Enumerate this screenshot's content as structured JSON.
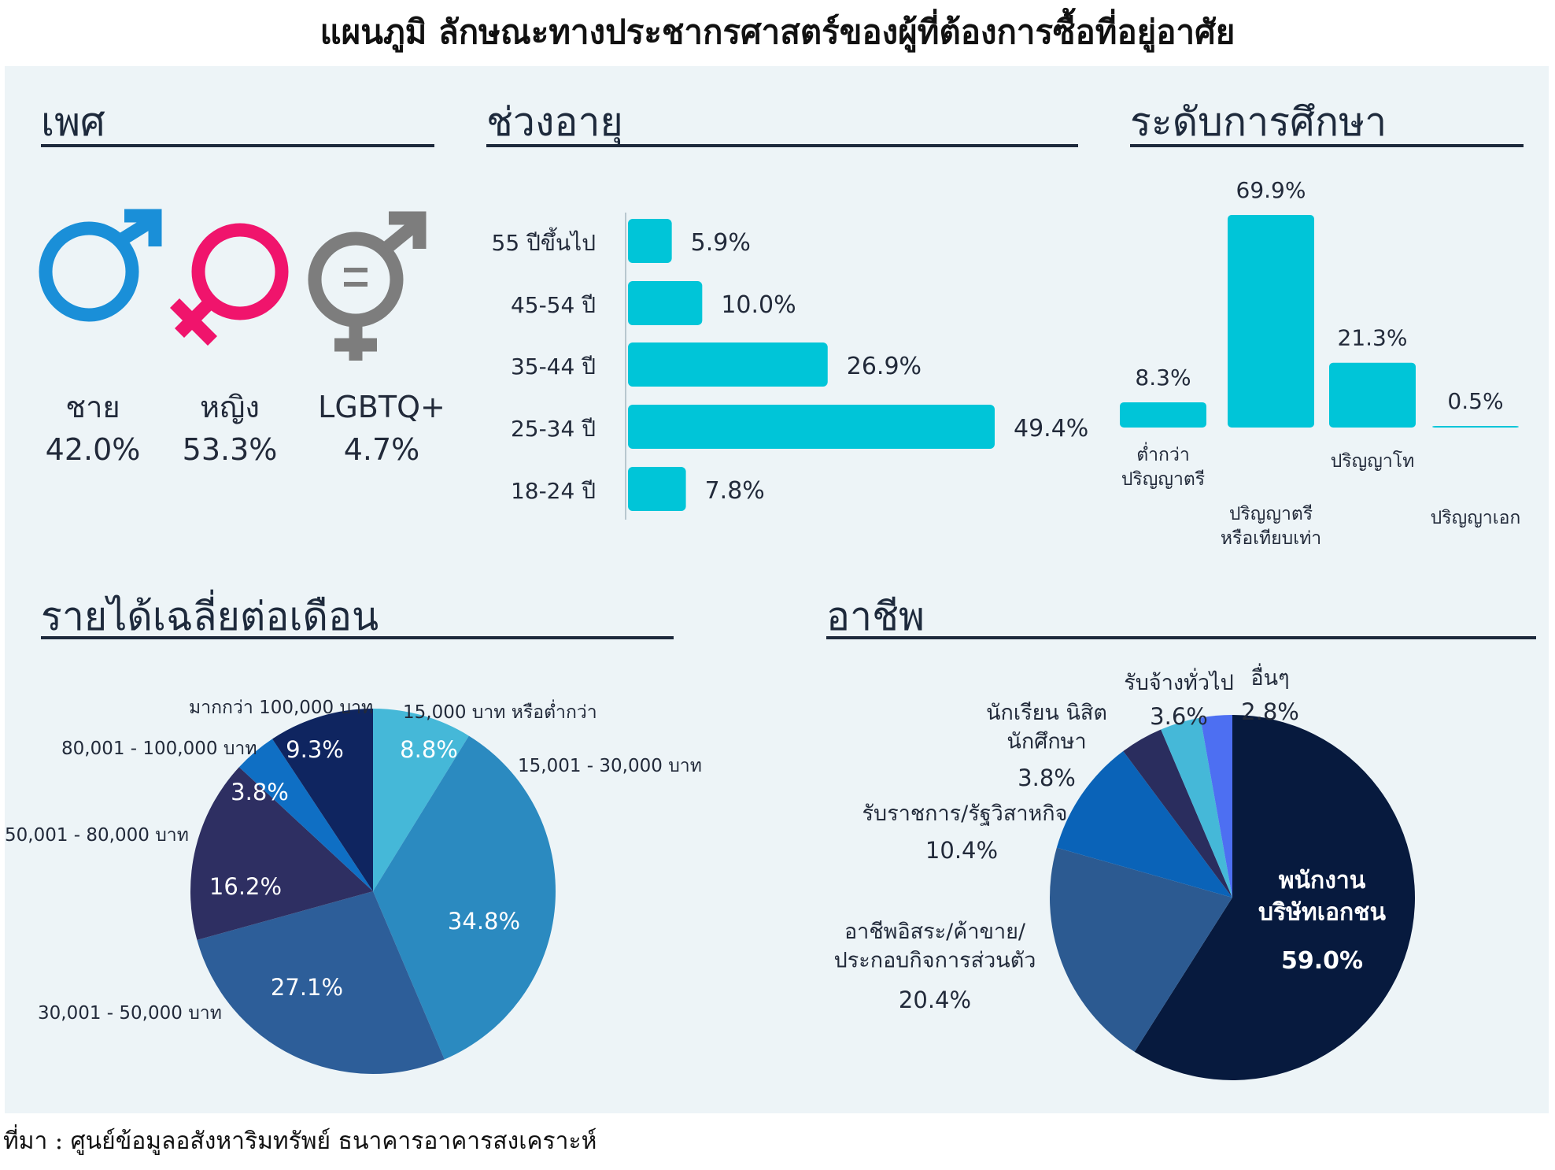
{
  "title": "แผนภูมิ ลักษณะทางประชากรศาสตร์ของผู้ที่ต้องการซื้อที่อยู่อาศัย",
  "source": "ที่มา : ศูนย์ข้อมูลอสังหาริมทรัพย์ ธนาคารอาคารสงเคราะห์",
  "chart_data": [
    {
      "type": "table",
      "title": "เพศ",
      "categories": [
        "ชาย",
        "หญิง",
        "LGBTQ+"
      ],
      "values": [
        42.0,
        53.3,
        4.7
      ],
      "value_labels": [
        "42.0%",
        "53.3%",
        "4.7%"
      ],
      "colors": [
        "#1a8fd8",
        "#f0146c",
        "#7d7d7d"
      ],
      "icons": [
        "male-symbol-icon",
        "female-symbol-icon",
        "lgbtq-symbol-icon"
      ]
    },
    {
      "type": "bar",
      "orientation": "horizontal",
      "title": "ช่วงอายุ",
      "categories": [
        "55 ปีขึ้นไป",
        "45-54 ปี",
        "35-44 ปี",
        "25-34 ปี",
        "18-24 ปี"
      ],
      "values": [
        5.9,
        10.0,
        26.9,
        49.4,
        7.8
      ],
      "value_labels": [
        "5.9%",
        "10.0%",
        "26.9%",
        "49.4%",
        "7.8%"
      ],
      "color": "#00c5d8"
    },
    {
      "type": "bar",
      "title": "ระดับการศึกษา",
      "categories": [
        [
          "ต่ำกว่า",
          "ปริญญาตรี"
        ],
        [
          "ปริญญาตรี",
          "หรือเทียบเท่า"
        ],
        [
          "ปริญญาโท"
        ],
        [
          "ปริญญาเอก"
        ]
      ],
      "values": [
        8.3,
        69.9,
        21.3,
        0.5
      ],
      "value_labels": [
        "8.3%",
        "69.9%",
        "21.3%",
        "0.5%"
      ],
      "color": "#00c5d8"
    },
    {
      "type": "pie",
      "title": "รายได้เฉลี่ยต่อเดือน",
      "categories": [
        "15,000 บาท หรือต่ำกว่า",
        "15,001 - 30,000 บาท",
        "30,001 - 50,000 บาท",
        "50,001 - 80,000 บาท",
        "80,001 - 100,000 บาท",
        "มากกว่า 100,000 บาท"
      ],
      "values": [
        8.8,
        34.8,
        27.1,
        16.2,
        3.8,
        9.3
      ],
      "value_labels": [
        "8.8%",
        "34.8%",
        "27.1%",
        "16.2%",
        "3.8%",
        "9.3%"
      ],
      "colors": [
        "#45b8d8",
        "#2b8ac0",
        "#2d5e99",
        "#2e2f62",
        "#0f6fc4",
        "#0f2560"
      ]
    },
    {
      "type": "pie",
      "title": "อาชีพ",
      "categories": [
        [
          "พนักงาน",
          "บริษัทเอกชน"
        ],
        [
          "อาชีพอิสระ/ค้าขาย/",
          "ประกอบกิจการส่วนตัว"
        ],
        [
          "รับราชการ/รัฐวิสาหกิจ"
        ],
        [
          "นักเรียน นิสิต",
          "นักศึกษา"
        ],
        [
          "รับจ้างทั่วไป"
        ],
        [
          "อื่นๆ"
        ]
      ],
      "values": [
        59.0,
        20.4,
        10.4,
        3.8,
        3.6,
        2.8
      ],
      "value_labels": [
        "59.0%",
        "20.4%",
        "10.4%",
        "3.8%",
        "3.6%",
        "2.8%"
      ],
      "colors": [
        "#071a3e",
        "#2c5a91",
        "#0a63b8",
        "#2a2d5e",
        "#45b8d8",
        "#4d6ff2"
      ]
    }
  ]
}
